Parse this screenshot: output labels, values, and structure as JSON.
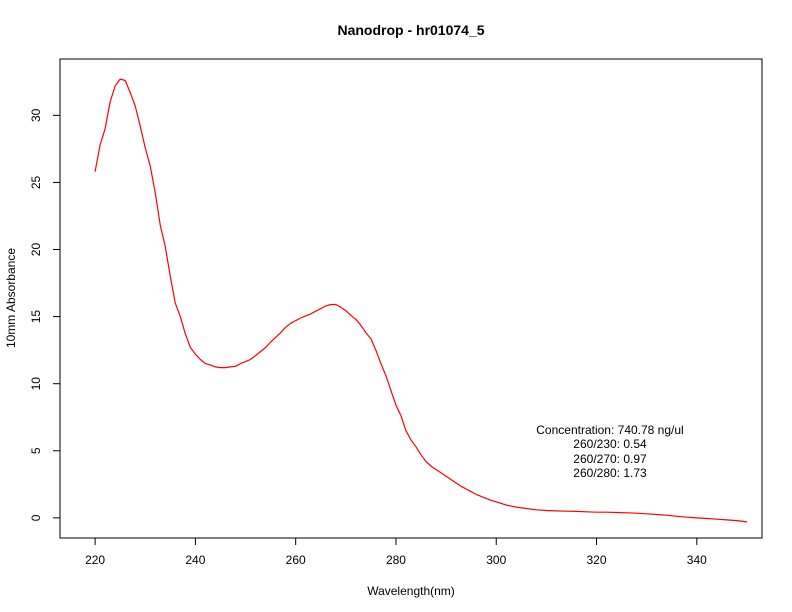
{
  "chart_data": {
    "type": "line",
    "title": "Nanodrop - hr01074_5",
    "xlabel": "Wavelength(nm)",
    "ylabel": "10mm Absorbance",
    "xlim": [
      213,
      353
    ],
    "ylim": [
      -1.5,
      34.2
    ],
    "xticks": [
      220,
      240,
      260,
      280,
      300,
      320,
      340
    ],
    "yticks": [
      0,
      5,
      10,
      15,
      20,
      25,
      30
    ],
    "grid": false,
    "series": [
      {
        "color": "#ff0000",
        "x": [
          220,
          221,
          222,
          223,
          224,
          225,
          226,
          227,
          228,
          229,
          230,
          231,
          232,
          233,
          234,
          235,
          236,
          237,
          238,
          239,
          240,
          241,
          242,
          243,
          244,
          245,
          246,
          247,
          248,
          249,
          250,
          251,
          252,
          253,
          254,
          255,
          256,
          257,
          258,
          259,
          260,
          261,
          262,
          263,
          264,
          265,
          266,
          267,
          268,
          269,
          270,
          271,
          272,
          273,
          274,
          275,
          276,
          277,
          278,
          279,
          280,
          281,
          282,
          283,
          284,
          285,
          286,
          287,
          288,
          289,
          290,
          291,
          292,
          293,
          294,
          295,
          296,
          297,
          298,
          299,
          300,
          302,
          304,
          306,
          308,
          310,
          312,
          314,
          316,
          318,
          320,
          322,
          324,
          326,
          328,
          330,
          332,
          334,
          336,
          338,
          340,
          342,
          344,
          346,
          348,
          350
        ],
        "y": [
          25.8,
          27.8,
          29.0,
          31.0,
          32.2,
          32.7,
          32.6,
          31.7,
          30.7,
          29.2,
          27.6,
          26.2,
          24.2,
          21.8,
          20.2,
          18.0,
          16.0,
          15.0,
          13.7,
          12.7,
          12.2,
          11.8,
          11.5,
          11.4,
          11.25,
          11.2,
          11.2,
          11.25,
          11.3,
          11.5,
          11.65,
          11.8,
          12.1,
          12.4,
          12.7,
          13.1,
          13.45,
          13.8,
          14.2,
          14.5,
          14.7,
          14.9,
          15.05,
          15.2,
          15.4,
          15.6,
          15.8,
          15.9,
          15.9,
          15.7,
          15.45,
          15.1,
          14.8,
          14.35,
          13.8,
          13.35,
          12.5,
          11.5,
          10.6,
          9.5,
          8.4,
          7.6,
          6.5,
          5.8,
          5.3,
          4.7,
          4.2,
          3.85,
          3.6,
          3.35,
          3.1,
          2.85,
          2.6,
          2.35,
          2.15,
          1.95,
          1.75,
          1.6,
          1.45,
          1.3,
          1.2,
          0.95,
          0.8,
          0.7,
          0.6,
          0.55,
          0.52,
          0.5,
          0.48,
          0.45,
          0.42,
          0.42,
          0.4,
          0.38,
          0.35,
          0.3,
          0.25,
          0.2,
          0.12,
          0.05,
          0.0,
          -0.05,
          -0.1,
          -0.15,
          -0.2,
          -0.3
        ]
      }
    ],
    "annotations": [
      "Concentration: 740.78 ng/ul",
      "260/230: 0.54",
      "260/270: 0.97",
      "260/280: 1.73"
    ]
  }
}
